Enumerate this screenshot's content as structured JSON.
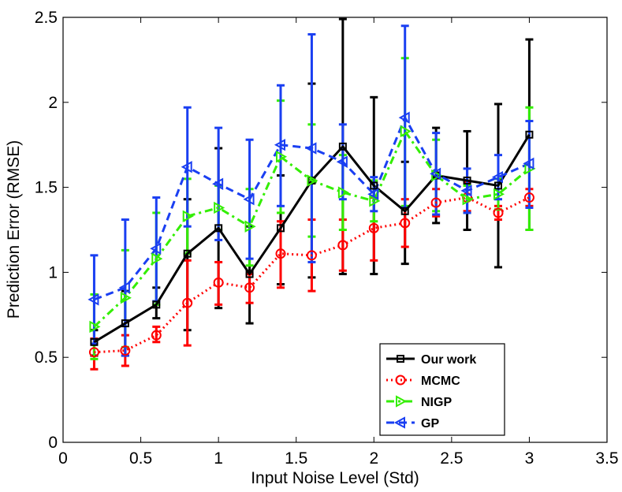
{
  "chart_data": {
    "type": "line",
    "title": "",
    "xlabel": "Input Noise Level (Std)",
    "ylabel": "Prediction Error (RMSE)",
    "xlim": [
      0,
      3.5
    ],
    "ylim": [
      0,
      2.5
    ],
    "xticks": [
      0,
      0.5,
      1,
      1.5,
      2,
      2.5,
      3,
      3.5
    ],
    "yticks": [
      0,
      0.5,
      1,
      1.5,
      2,
      2.5
    ],
    "xtick_labels": [
      "0",
      "0.5",
      "1",
      "1.5",
      "2",
      "2.5",
      "3",
      "3.5"
    ],
    "ytick_labels": [
      "0",
      "0.5",
      "1",
      "1.5",
      "2",
      "2.5"
    ],
    "grid": false,
    "legend_position": "bottom-right",
    "x": [
      0.2,
      0.4,
      0.6,
      0.8,
      1.0,
      1.2,
      1.4,
      1.6,
      1.8,
      2.0,
      2.2,
      2.4,
      2.6,
      2.8,
      3.0
    ],
    "series": [
      {
        "name": "Our work",
        "color": "#000000",
        "line_style": "solid",
        "marker": "square",
        "values": [
          0.59,
          0.7,
          0.81,
          1.11,
          1.26,
          0.99,
          1.26,
          1.54,
          1.74,
          1.51,
          1.36,
          1.57,
          1.54,
          1.51,
          1.81
        ],
        "err_low": [
          0.51,
          0.51,
          0.73,
          0.66,
          0.79,
          0.7,
          0.93,
          0.97,
          0.99,
          0.99,
          1.05,
          1.29,
          1.25,
          1.03,
          1.25
        ],
        "err_high": [
          0.66,
          0.89,
          0.91,
          1.43,
          1.73,
          1.27,
          1.57,
          2.11,
          2.49,
          2.03,
          1.65,
          1.85,
          1.83,
          1.99,
          2.37
        ]
      },
      {
        "name": "MCMC",
        "color": "#ff0000",
        "line_style": "dotted",
        "marker": "circle",
        "values": [
          0.53,
          0.54,
          0.63,
          0.82,
          0.94,
          0.91,
          1.11,
          1.1,
          1.16,
          1.26,
          1.29,
          1.41,
          1.44,
          1.35,
          1.44
        ],
        "err_low": [
          0.43,
          0.45,
          0.59,
          0.57,
          0.81,
          0.82,
          0.91,
          0.89,
          1.01,
          1.07,
          1.15,
          1.33,
          1.36,
          1.31,
          1.39
        ],
        "err_high": [
          0.61,
          0.63,
          0.68,
          1.07,
          1.06,
          0.99,
          1.3,
          1.31,
          1.31,
          1.44,
          1.43,
          1.49,
          1.53,
          1.39,
          1.49
        ]
      },
      {
        "name": "NIGP",
        "color": "#33ee00",
        "line_style": "dashdot",
        "marker": "triangle-right",
        "values": [
          0.68,
          0.85,
          1.08,
          1.33,
          1.38,
          1.27,
          1.68,
          1.54,
          1.47,
          1.42,
          1.83,
          1.57,
          1.43,
          1.46,
          1.61
        ],
        "err_low": [
          0.49,
          0.56,
          0.81,
          1.11,
          1.25,
          1.04,
          1.35,
          1.21,
          1.25,
          1.3,
          1.39,
          1.36,
          1.35,
          1.37,
          1.25
        ],
        "err_high": [
          0.87,
          1.13,
          1.35,
          1.55,
          1.51,
          1.49,
          2.01,
          1.87,
          1.69,
          1.54,
          2.26,
          1.78,
          1.51,
          1.55,
          1.97
        ]
      },
      {
        "name": "GP",
        "color": "#1a3ff2",
        "line_style": "dashed",
        "marker": "triangle-left",
        "values": [
          0.84,
          0.91,
          1.14,
          1.62,
          1.52,
          1.43,
          1.75,
          1.73,
          1.65,
          1.46,
          1.91,
          1.58,
          1.48,
          1.56,
          1.64
        ],
        "err_low": [
          0.58,
          0.51,
          0.83,
          1.27,
          1.19,
          1.08,
          1.39,
          1.06,
          1.43,
          1.36,
          1.38,
          1.34,
          1.35,
          1.43,
          1.38
        ],
        "err_high": [
          1.1,
          1.31,
          1.44,
          1.97,
          1.85,
          1.78,
          2.1,
          2.4,
          1.87,
          1.56,
          2.45,
          1.82,
          1.61,
          1.69,
          1.89
        ]
      }
    ]
  }
}
